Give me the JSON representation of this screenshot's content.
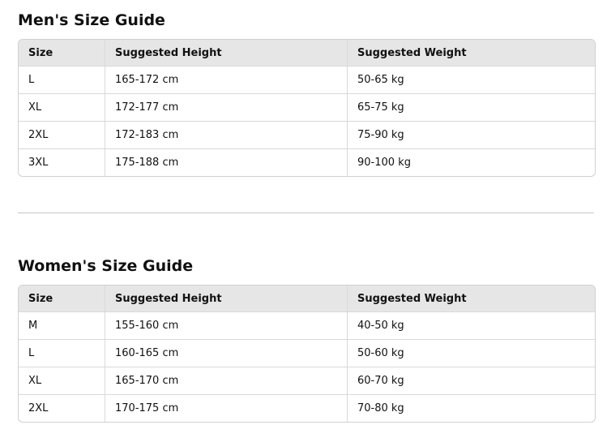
{
  "men": {
    "title": "Men's Size Guide",
    "headers": [
      "Size",
      "Suggested Height",
      "Suggested Weight"
    ],
    "rows": [
      [
        "L",
        "165-172 cm",
        "50-65 kg"
      ],
      [
        "XL",
        "172-177 cm",
        "65-75 kg"
      ],
      [
        "2XL",
        "172-183 cm",
        "75-90 kg"
      ],
      [
        "3XL",
        "175-188 cm",
        "90-100 kg"
      ]
    ]
  },
  "women": {
    "title": "Women's Size Guide",
    "headers": [
      "Size",
      "Suggested Height",
      "Suggested Weight"
    ],
    "rows": [
      [
        "M",
        "155-160 cm",
        "40-50 kg"
      ],
      [
        "L",
        "160-165 cm",
        "50-60 kg"
      ],
      [
        "XL",
        "165-170 cm",
        "60-70 kg"
      ],
      [
        "2XL",
        "170-175 cm",
        "70-80 kg"
      ]
    ]
  }
}
